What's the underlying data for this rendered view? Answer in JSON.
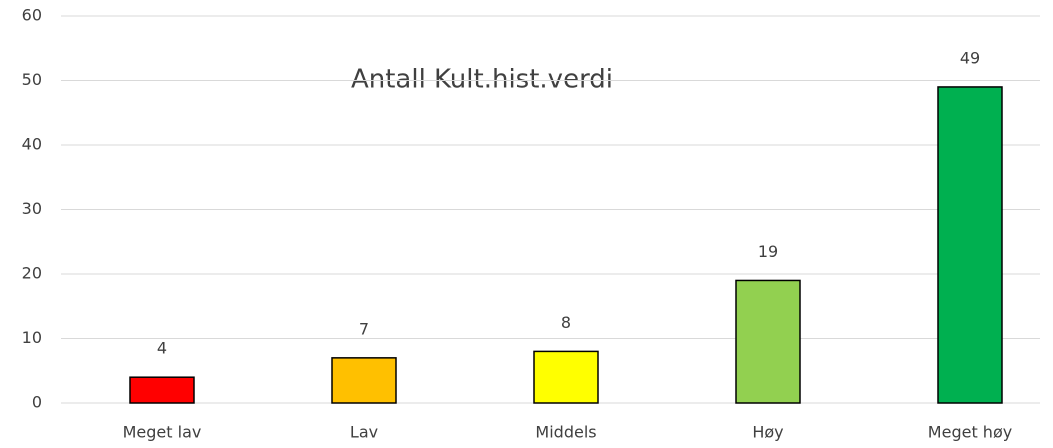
{
  "chart_data": {
    "type": "bar",
    "title": "Antall Kult.hist.verdi",
    "categories": [
      "Meget lav",
      "Lav",
      "Middels",
      "Høy",
      "Meget høy"
    ],
    "values": [
      4,
      7,
      8,
      19,
      49
    ],
    "colors": [
      "#ff0000",
      "#ffc000",
      "#ffff00",
      "#92d050",
      "#00b050"
    ],
    "ylim": [
      0,
      60
    ],
    "yticks": [
      0,
      10,
      20,
      30,
      40,
      50,
      60
    ],
    "grid": true
  }
}
